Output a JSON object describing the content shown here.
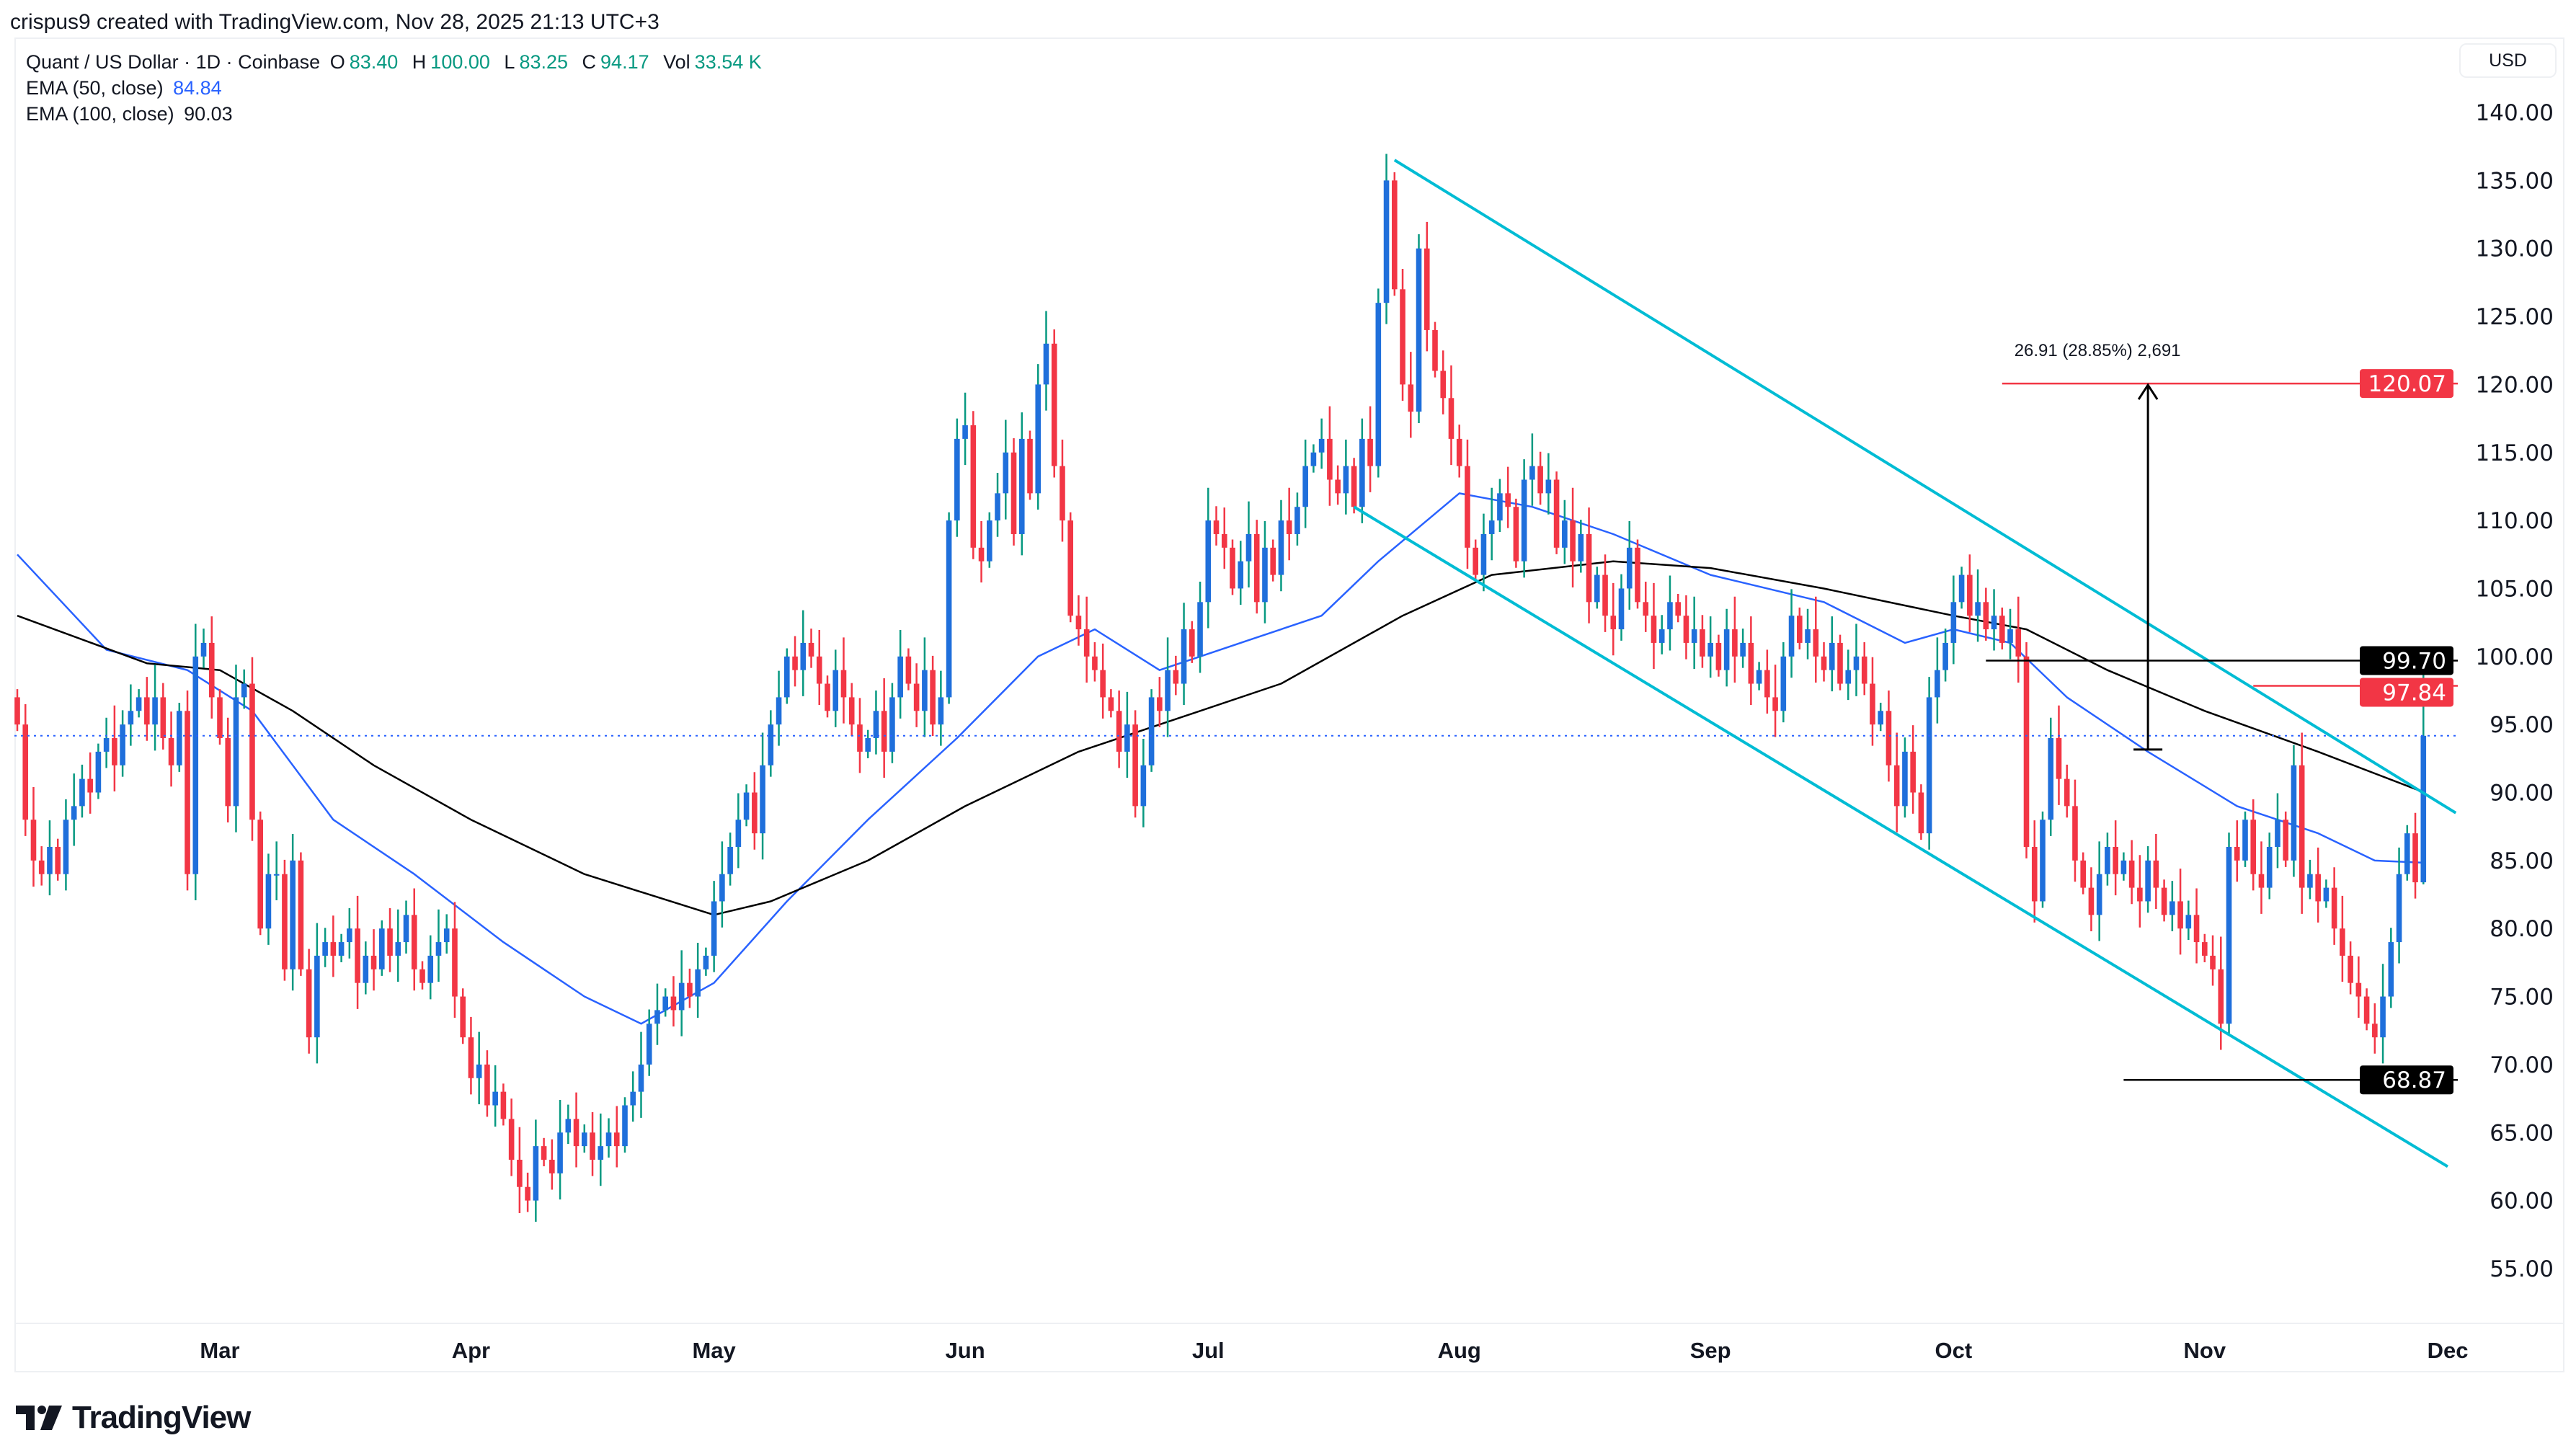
{
  "header": {
    "credit": "crispus9 created with TradingView.com, Nov 28, 2025 21:13 UTC+3"
  },
  "legend": {
    "symbol": "Quant / US Dollar · 1D · Coinbase",
    "o_label": "O",
    "o": "83.40",
    "h_label": "H",
    "h": "100.00",
    "l_label": "L",
    "l": "83.25",
    "c_label": "C",
    "c": "94.17",
    "vol_label": "Vol",
    "vol": "33.54 K",
    "ema50_label": "EMA (50, close)",
    "ema50": "84.84",
    "ema100_label": "EMA (100, close)",
    "ema100": "90.03"
  },
  "currency": "USD",
  "logo": {
    "text": "TradingView"
  },
  "colors": {
    "up_body": "#1f6fdb",
    "up_wick": "#089981",
    "down": "#f23645",
    "ema50": "#2962ff",
    "ema100": "#000000",
    "channel": "#00bcd4",
    "target": "#f23645"
  },
  "chart_data": {
    "type": "candlestick",
    "x_range": [
      "2025-02-04",
      "2025-11-28"
    ],
    "x_ticks": [
      "Mar",
      "Apr",
      "May",
      "Jun",
      "Jul",
      "Aug",
      "Sep",
      "Oct",
      "Nov",
      "Dec"
    ],
    "x_tick_dates": [
      "2025-03-01",
      "2025-04-01",
      "2025-05-01",
      "2025-06-01",
      "2025-07-01",
      "2025-08-01",
      "2025-09-01",
      "2025-10-01",
      "2025-11-01",
      "2025-12-01"
    ],
    "ylim": [
      50,
      143
    ],
    "y_ticks": [
      "55.00",
      "60.00",
      "65.00",
      "70.00",
      "75.00",
      "80.00",
      "85.00",
      "90.00",
      "95.00",
      "100.00",
      "105.00",
      "110.00",
      "115.00",
      "120.00",
      "125.00",
      "130.00",
      "135.00",
      "140.00"
    ],
    "last_candle": {
      "open": 83.4,
      "high": 100.0,
      "low": 83.25,
      "close": 94.17
    },
    "close": [
      95,
      88,
      85,
      84,
      86,
      84,
      88,
      89,
      91,
      90,
      93,
      94,
      92,
      95,
      96,
      97,
      95,
      97,
      94,
      92,
      96,
      84,
      100,
      101,
      97,
      94,
      89,
      97,
      98,
      88,
      80,
      84,
      84,
      77,
      85,
      77,
      72,
      78,
      79,
      78,
      79,
      80,
      76,
      78,
      77,
      80,
      78,
      79,
      81,
      77,
      76,
      78,
      79,
      80,
      75,
      72,
      69,
      70,
      67,
      68,
      66,
      63,
      61,
      60,
      64,
      63,
      62,
      65,
      66,
      64,
      65,
      63,
      64,
      65,
      64,
      67,
      68,
      70,
      73,
      74,
      75,
      74,
      76,
      75,
      77,
      78,
      82,
      84,
      86,
      88,
      90,
      87,
      92,
      95,
      97,
      100,
      99,
      101,
      100,
      98,
      96,
      99,
      97,
      95,
      93,
      94,
      96,
      93,
      97,
      100,
      98,
      96,
      99,
      95,
      97,
      110,
      116,
      117,
      108,
      107,
      110,
      112,
      115,
      109,
      116,
      112,
      120,
      123,
      114,
      110,
      103,
      102,
      100,
      99,
      97,
      96,
      93,
      95,
      89,
      92,
      97,
      96,
      99,
      98,
      102,
      100,
      104,
      110,
      109,
      108,
      105,
      107,
      109,
      104,
      108,
      106,
      110,
      109,
      111,
      114,
      115,
      116,
      113,
      112,
      114,
      111,
      116,
      114,
      126,
      135,
      127,
      120,
      118,
      130,
      124,
      121,
      119,
      116,
      114,
      108,
      106,
      109,
      110,
      112,
      111,
      107,
      113,
      114,
      112,
      113,
      108,
      110,
      107,
      109,
      104,
      106,
      103,
      102,
      105,
      108,
      104,
      103,
      101,
      102,
      104,
      103,
      101,
      102,
      100,
      101,
      99,
      102,
      100,
      101,
      98,
      99,
      97,
      96,
      100,
      103,
      101,
      102,
      100,
      99,
      101,
      98,
      99,
      100,
      98,
      95,
      96,
      92,
      89,
      93,
      90,
      87,
      97,
      99,
      101,
      104,
      106,
      103,
      104,
      102,
      103,
      101,
      102,
      100,
      86,
      82,
      88,
      94,
      91,
      89,
      85,
      83,
      81,
      84,
      86,
      84,
      85,
      83,
      82,
      85,
      83,
      81,
      82,
      80,
      81,
      79,
      78,
      77,
      73,
      86,
      85,
      88,
      84,
      83,
      86,
      88,
      85,
      92,
      83,
      84,
      82,
      83,
      80,
      78,
      76,
      75,
      73,
      72,
      75,
      79,
      84,
      87,
      83.4,
      94.17
    ],
    "ema50": [
      [
        "2025-02-04",
        107.5
      ],
      [
        "2025-02-15",
        100.5
      ],
      [
        "2025-02-25",
        99
      ],
      [
        "2025-03-05",
        96
      ],
      [
        "2025-03-15",
        88
      ],
      [
        "2025-03-25",
        84
      ],
      [
        "2025-04-05",
        79
      ],
      [
        "2025-04-15",
        75
      ],
      [
        "2025-04-22",
        73
      ],
      [
        "2025-05-01",
        76
      ],
      [
        "2025-05-10",
        82
      ],
      [
        "2025-05-20",
        88
      ],
      [
        "2025-05-31",
        94
      ],
      [
        "2025-06-10",
        100
      ],
      [
        "2025-06-17",
        102
      ],
      [
        "2025-06-25",
        99
      ],
      [
        "2025-07-05",
        101
      ],
      [
        "2025-07-15",
        103
      ],
      [
        "2025-07-22",
        107
      ],
      [
        "2025-08-01",
        112
      ],
      [
        "2025-08-10",
        111
      ],
      [
        "2025-08-20",
        109
      ],
      [
        "2025-09-01",
        106
      ],
      [
        "2025-09-15",
        104
      ],
      [
        "2025-09-25",
        101
      ],
      [
        "2025-10-01",
        102
      ],
      [
        "2025-10-08",
        101
      ],
      [
        "2025-10-15",
        97
      ],
      [
        "2025-10-25",
        93
      ],
      [
        "2025-11-05",
        89
      ],
      [
        "2025-11-15",
        87
      ],
      [
        "2025-11-22",
        85
      ],
      [
        "2025-11-28",
        84.84
      ]
    ],
    "ema100": [
      [
        "2025-02-04",
        103
      ],
      [
        "2025-02-20",
        99.5
      ],
      [
        "2025-03-01",
        99
      ],
      [
        "2025-03-10",
        96
      ],
      [
        "2025-03-20",
        92
      ],
      [
        "2025-04-01",
        88
      ],
      [
        "2025-04-15",
        84
      ],
      [
        "2025-05-01",
        81
      ],
      [
        "2025-05-08",
        82
      ],
      [
        "2025-05-20",
        85
      ],
      [
        "2025-06-01",
        89
      ],
      [
        "2025-06-15",
        93
      ],
      [
        "2025-06-25",
        95
      ],
      [
        "2025-07-10",
        98
      ],
      [
        "2025-07-25",
        103
      ],
      [
        "2025-08-05",
        106
      ],
      [
        "2025-08-20",
        107
      ],
      [
        "2025-09-01",
        106.5
      ],
      [
        "2025-09-15",
        105
      ],
      [
        "2025-10-01",
        103
      ],
      [
        "2025-10-10",
        102
      ],
      [
        "2025-10-20",
        99
      ],
      [
        "2025-11-01",
        96
      ],
      [
        "2025-11-15",
        93
      ],
      [
        "2025-11-28",
        90.03
      ]
    ],
    "drawings": {
      "channel_upper": [
        [
          "2025-07-24",
          136.5
        ],
        [
          "2025-12-02",
          88.5
        ]
      ],
      "channel_lower": [
        [
          "2025-07-19",
          111
        ],
        [
          "2025-12-01",
          62.5
        ]
      ],
      "levels": [
        {
          "price": 120.07,
          "label": "120.07",
          "from": "2025-10-07",
          "color": "#f23645"
        },
        {
          "price": 99.7,
          "label": "99.70",
          "from": "2025-10-05",
          "color": "#000000"
        },
        {
          "price": 97.84,
          "label": "97.84",
          "from": "2025-11-07",
          "color": "#f23645"
        },
        {
          "price": 68.87,
          "label": "68.87",
          "from": "2025-10-22",
          "color": "#000000"
        }
      ],
      "measure": {
        "date": "2025-10-25",
        "from": 93.16,
        "to": 120.07,
        "label": "26.91 (28.85%) 2,691"
      },
      "current_price": 94.17
    }
  }
}
